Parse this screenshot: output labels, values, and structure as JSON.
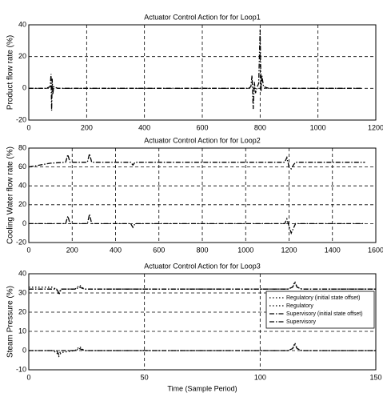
{
  "chart_data": [
    {
      "type": "line",
      "title": "Actuator Control Action for for Loop1",
      "ylabel": "Product flow rate (%)",
      "xlim": [
        0,
        1200
      ],
      "xticks": [
        0,
        200,
        400,
        600,
        800,
        1000,
        1200
      ],
      "ylim": [
        -20,
        40
      ],
      "yticks": [
        -20,
        0,
        20,
        40
      ],
      "grid": true,
      "x": [
        0,
        60,
        74,
        77,
        79,
        81,
        83,
        86,
        100,
        300,
        500,
        700,
        760,
        768,
        772,
        776,
        780,
        784,
        790,
        795,
        800,
        803,
        806,
        812,
        830,
        900,
        1100,
        1150
      ],
      "series": [
        {
          "color": "#000",
          "dash": "dashdot",
          "values": [
            0,
            0,
            1,
            9,
            -14,
            6,
            -4,
            1,
            0,
            0,
            0,
            0,
            0,
            1,
            8,
            -13,
            4,
            -3,
            1,
            3,
            37,
            -2,
            8,
            1,
            0,
            0,
            0,
            0
          ]
        }
      ]
    },
    {
      "type": "line",
      "title": "Actuator Control Action for for Loop2",
      "ylabel": "Cooling Water flow rate (%)",
      "xlim": [
        0,
        1600
      ],
      "xticks": [
        0,
        200,
        400,
        600,
        800,
        1000,
        1200,
        1400,
        1600
      ],
      "ylim": [
        -20,
        80
      ],
      "yticks": [
        -20,
        0,
        20,
        40,
        60,
        80
      ],
      "grid": true,
      "x": [
        0,
        50,
        100,
        170,
        180,
        190,
        270,
        280,
        290,
        470,
        480,
        490,
        800,
        1180,
        1190,
        1200,
        1210,
        1220,
        1230,
        1300,
        1550
      ],
      "series": [
        {
          "color": "#000",
          "dash": "dashdot",
          "values": [
            60,
            62,
            64,
            65,
            73,
            65,
            65,
            74,
            65,
            65,
            62,
            65,
            65,
            65,
            70,
            60,
            58,
            62,
            65,
            65,
            65
          ]
        },
        {
          "color": "#000",
          "dash": "dashdot",
          "values": [
            0,
            0,
            0,
            0,
            8,
            0,
            0,
            10,
            0,
            0,
            -4,
            0,
            0,
            0,
            5,
            -3,
            -10,
            -5,
            0,
            0,
            0
          ]
        }
      ]
    },
    {
      "type": "line",
      "title": "Actuator Control Action for for Loop3",
      "ylabel": "Steam Pressure (%)",
      "xlabel": "Time (Sample Period)",
      "xlim": [
        0,
        150
      ],
      "xticks": [
        0,
        50,
        100,
        150
      ],
      "ylim": [
        -10,
        40
      ],
      "yticks": [
        -10,
        0,
        10,
        20,
        30,
        40
      ],
      "grid": true,
      "legend": "lower right",
      "x": [
        0,
        10,
        12,
        13,
        14,
        20,
        22,
        24,
        50,
        100,
        112,
        114,
        115,
        116,
        118,
        150
      ],
      "series": [
        {
          "name": "Regulatory (initial state offset)",
          "color": "#000",
          "dash": "dotted",
          "values": [
            33,
            33,
            32,
            29,
            32,
            32,
            34,
            32,
            32,
            32,
            32,
            33,
            36,
            33,
            32,
            32
          ]
        },
        {
          "name": "Regulatory",
          "color": "#000",
          "dash": "dotted",
          "values": [
            0,
            0,
            -1,
            -3,
            -1,
            0,
            2,
            0,
            0,
            0,
            0,
            1,
            4,
            1,
            0,
            0
          ]
        },
        {
          "name": "Supervisory (initial state offset)",
          "color": "#000",
          "dash": "dashdot",
          "values": [
            32,
            32,
            32,
            30,
            32,
            32,
            33,
            32,
            32,
            32,
            32,
            33,
            35,
            33,
            32,
            32
          ]
        },
        {
          "name": "Supervisory",
          "color": "#000",
          "dash": "dashdot",
          "values": [
            0,
            0,
            0,
            -2,
            0,
            0,
            1,
            0,
            0,
            0,
            0,
            1,
            3,
            1,
            0,
            0
          ]
        }
      ]
    }
  ]
}
